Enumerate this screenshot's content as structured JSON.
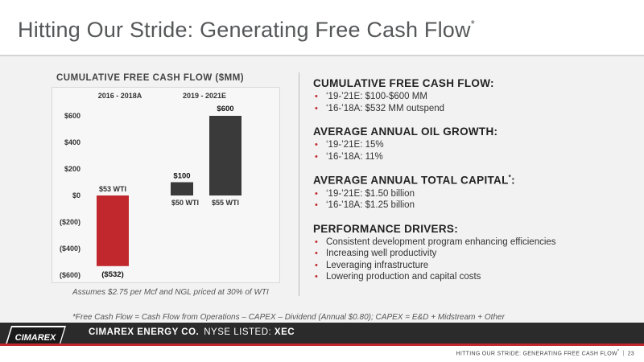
{
  "slide": {
    "title": "Hitting Our Stride: Generating Free Cash Flow",
    "title_mark": "*"
  },
  "chart": {
    "heading": "CUMULATIVE FREE CASH FLOW ($MM)",
    "note": "Assumes $2.75 per Mcf and NGL priced at 30% of WTI"
  },
  "chart_data": {
    "type": "bar",
    "title": "CUMULATIVE FREE CASH FLOW ($MM)",
    "groups": [
      "2016 - 2018A",
      "2019 - 2021E"
    ],
    "categories": [
      "$53 WTI",
      "$50 WTI",
      "$55 WTI"
    ],
    "values": [
      -532,
      100,
      600
    ],
    "value_labels": [
      "($532)",
      "$100",
      "$600"
    ],
    "bar_colors": [
      "#c0282d",
      "#3a3a3a",
      "#3a3a3a"
    ],
    "y_ticks": [
      "$600",
      "$400",
      "$200",
      "$0",
      "($200)",
      "($400)",
      "($600)"
    ],
    "ylim": [
      -600,
      600
    ],
    "grid": false
  },
  "sections": [
    {
      "heading": "CUMULATIVE FREE CASH FLOW:",
      "items": [
        "‘19-’21E: $100-$600 MM",
        "‘16-’18A: $532 MM outspend"
      ]
    },
    {
      "heading": "AVERAGE ANNUAL OIL GROWTH:",
      "items": [
        "‘19-’21E: 15%",
        "‘16-’18A: 11%"
      ]
    },
    {
      "heading": "AVERAGE ANNUAL TOTAL CAPITAL",
      "items": [
        "‘19-’21E: $1.50 billion",
        "‘16-’18A: $1.25 billion"
      ]
    },
    {
      "heading": "PERFORMANCE DRIVERS:",
      "items": [
        "Consistent development program enhancing efficiencies",
        "Increasing well productivity",
        "Leveraging infrastructure",
        "Lowering production and capital costs"
      ]
    }
  ],
  "capital_mark": "*",
  "capital_colon": ":",
  "footnote": "*Free Cash Flow = Cash Flow from Operations – CAPEX – Dividend (Annual $0.80); CAPEX = E&D + Midstream + Other",
  "footer": {
    "logo_text": "CIMAREX",
    "company": "CIMAREX ENERGY CO.",
    "listed": "NYSE LISTED:",
    "ticker": "XEC",
    "slide_title": "HITTING OUR STRIDE: GENERATING FREE CASH FLOW",
    "slide_title_mark": "*",
    "page": "23",
    "sep": "|"
  },
  "colors": {
    "accent": "#c0282d",
    "dark": "#2b2b2b"
  }
}
